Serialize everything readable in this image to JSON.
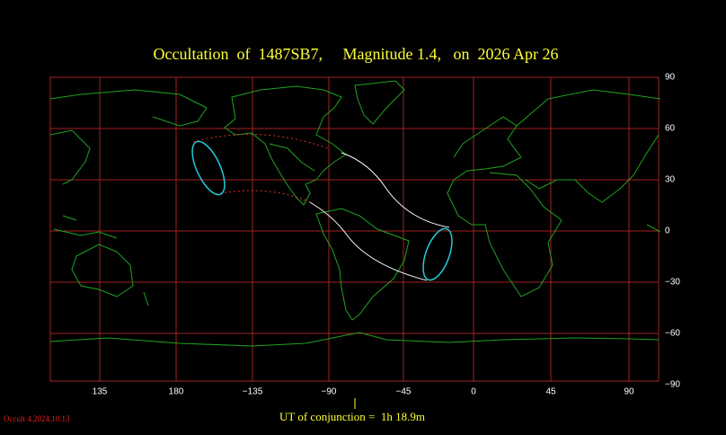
{
  "title": "Occultation  of  1487SB7,     Magnitude 1.4,   on  2026 Apr 26",
  "latitude_labels": [
    "90",
    "60",
    "30",
    "0",
    "−30",
    "−60",
    "−90"
  ],
  "longitude_labels": [
    "135",
    "180",
    "−135",
    "−90",
    "−45",
    "0",
    "45",
    "90"
  ],
  "conjunction": "UT of conjunction =  1h 18.9m",
  "version": "Occult 4.2024.10.13"
}
